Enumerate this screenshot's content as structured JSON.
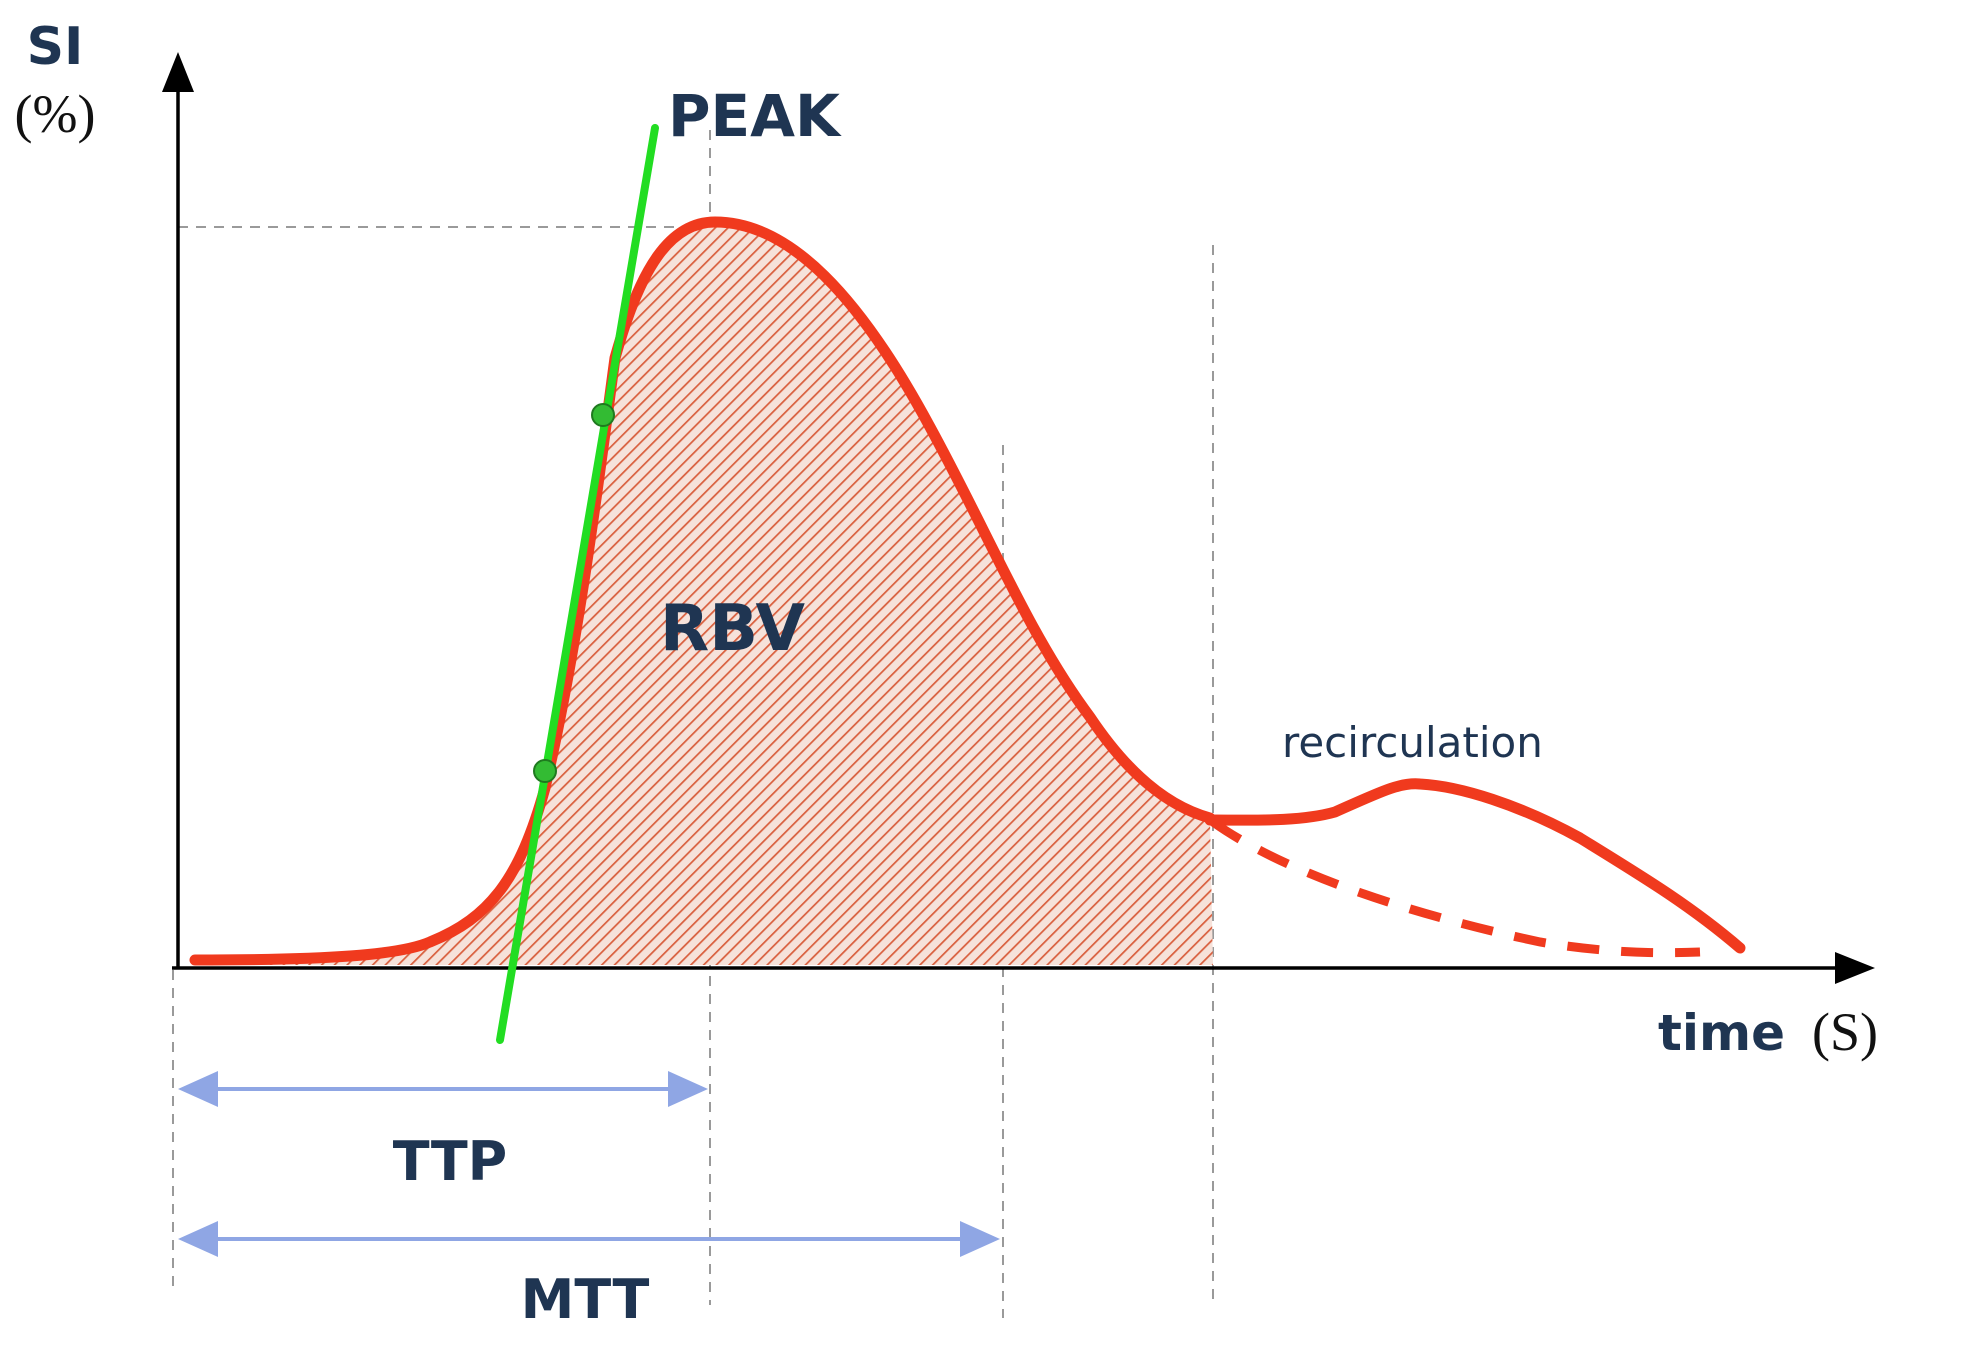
{
  "labels": {
    "y_axis_symbol": "SI",
    "y_axis_unit": "(%)",
    "x_axis_name": "time",
    "x_axis_unit": "(S)",
    "peak": "PEAK",
    "area": "RBV",
    "recirculation": "recirculation",
    "ttp": "TTP",
    "mtt": "MTT"
  },
  "colors": {
    "curve": "#f03a1e",
    "hatch": "#d9603f",
    "slope_line": "#22dd22",
    "slope_point": "#33bb33",
    "interval_arrow": "#8fa6e4",
    "guide_line": "#9a9a9a",
    "axis": "#000000",
    "label_text": "#1f3552"
  }
}
